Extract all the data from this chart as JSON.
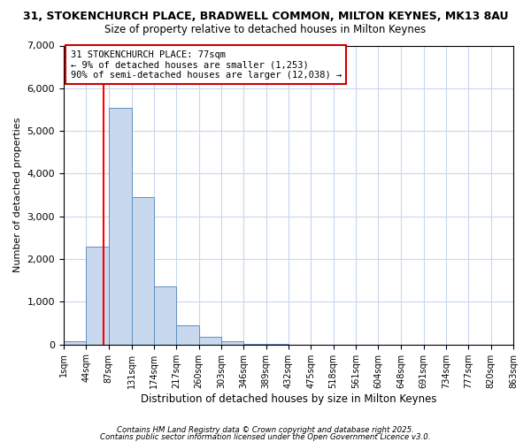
{
  "title_line1": "31, STOKENCHURCH PLACE, BRADWELL COMMON, MILTON KEYNES, MK13 8AU",
  "title_line2": "Size of property relative to detached houses in Milton Keynes",
  "xlabel": "Distribution of detached houses by size in Milton Keynes",
  "ylabel": "Number of detached properties",
  "bin_edges": [
    1,
    44,
    87,
    131,
    174,
    217,
    260,
    303,
    346,
    389,
    432,
    475,
    518,
    561,
    604,
    648,
    691,
    734,
    777,
    820,
    863
  ],
  "bar_heights": [
    75,
    2300,
    5550,
    3450,
    1350,
    450,
    175,
    75,
    25,
    10,
    0,
    0,
    0,
    0,
    0,
    0,
    0,
    0,
    0,
    0
  ],
  "bar_color": "#c8d8ee",
  "bar_edgecolor": "#6090c0",
  "red_line_x": 77,
  "ylim": [
    0,
    7000
  ],
  "yticks": [
    0,
    1000,
    2000,
    3000,
    4000,
    5000,
    6000,
    7000
  ],
  "annotation_line1": "31 STOKENCHURCH PLACE: 77sqm",
  "annotation_line2": "← 9% of detached houses are smaller (1,253)",
  "annotation_line3": "90% of semi-detached houses are larger (12,038) →",
  "annotation_box_color": "#ffffff",
  "annotation_box_edgecolor": "#cc0000",
  "footnote1": "Contains HM Land Registry data © Crown copyright and database right 2025.",
  "footnote2": "Contains public sector information licensed under the Open Government Licence v3.0.",
  "background_color": "#ffffff",
  "grid_color": "#c8d8f0"
}
